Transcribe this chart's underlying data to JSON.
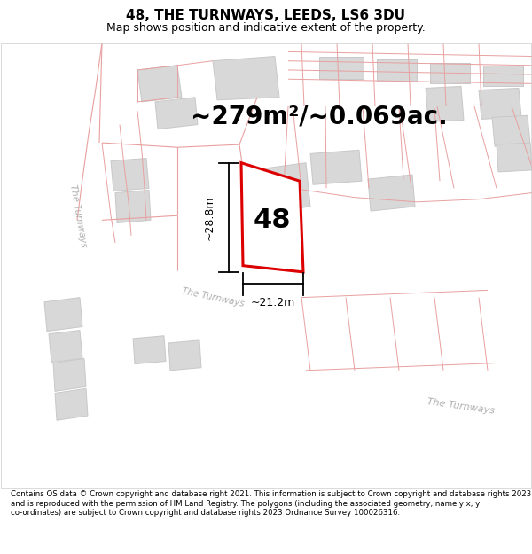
{
  "title": "48, THE TURNWAYS, LEEDS, LS6 3DU",
  "subtitle": "Map shows position and indicative extent of the property.",
  "area_label": "~279m²/~0.069ac.",
  "plot_number": "48",
  "dim_width": "~21.2m",
  "dim_height": "~28.8m",
  "footer_text": "Contains OS data © Crown copyright and database right 2021. This information is subject to Crown copyright and database rights 2023 and is reproduced with the permission of HM Land Registry. The polygons (including the associated geometry, namely x, y co-ordinates) are subject to Crown copyright and database rights 2023 Ordnance Survey 100026316.",
  "bg_color": "#ffffff",
  "map_bg": "#f5f5f5",
  "road_color": "#ffffff",
  "building_color": "#d8d8d8",
  "building_edge_color": "#c8c8c8",
  "highlight_color": "#dd0000",
  "pink_line_color": "#e8a0a0",
  "road_label_color": "#aaaaaa",
  "title_fontsize": 11,
  "subtitle_fontsize": 9,
  "area_fontsize": 20,
  "plot_num_fontsize": 22,
  "dim_fontsize": 9,
  "footer_fontsize": 6.2
}
